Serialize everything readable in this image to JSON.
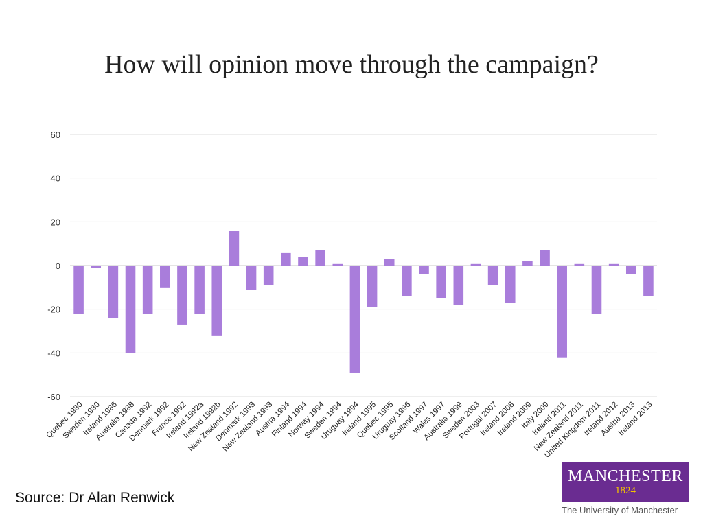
{
  "slide": {
    "title": "How will opinion move through the campaign?",
    "source": "Source: Dr Alan Renwick"
  },
  "logo": {
    "wordmark": "MANCHESTER",
    "year": "1824",
    "tagline": "The University of Manchester",
    "colors": {
      "background": "#6a2c91",
      "text": "#ffffff",
      "year": "#f2c200"
    }
  },
  "chart_data": {
    "type": "bar",
    "title": "",
    "xlabel": "",
    "ylabel": "",
    "ylim": [
      -60,
      60
    ],
    "yticks": [
      60,
      40,
      20,
      0,
      -20,
      -40,
      -60
    ],
    "grid": true,
    "bar_color": "#a97ddb",
    "categories": [
      "Quebec 1980",
      "Sweden 1980",
      "Ireland 1986",
      "Australia 1988",
      "Canada 1992",
      "Denmark 1992",
      "France 1992",
      "Ireland 1992a",
      "Ireland 1992b",
      "New Zealand 1992",
      "Denmark 1993",
      "New Zealand 1993",
      "Austria 1994",
      "Finland 1994",
      "Norway 1994",
      "Sweden 1994",
      "Uruguay 1994",
      "Ireland 1995",
      "Quebec 1995",
      "Uruguay 1996",
      "Scotland 1997",
      "Wales 1997",
      "Australia 1999",
      "Sweden 2003",
      "Portugal 2007",
      "Ireland 2008",
      "Ireland 2009",
      "Italy 2009",
      "Ireland 2011",
      "New Zealand 2011",
      "United Kingdom 2011",
      "Ireland 2012",
      "Austria 2013",
      "Ireland 2013"
    ],
    "values": [
      -22,
      -1,
      -24,
      -40,
      -22,
      -10,
      -27,
      -22,
      -32,
      16,
      -11,
      -9,
      6,
      4,
      7,
      1,
      -49,
      -19,
      3,
      -14,
      -4,
      -15,
      -18,
      1,
      -9,
      -17,
      2,
      7,
      -42,
      1,
      -22,
      1,
      -4,
      -14
    ]
  }
}
